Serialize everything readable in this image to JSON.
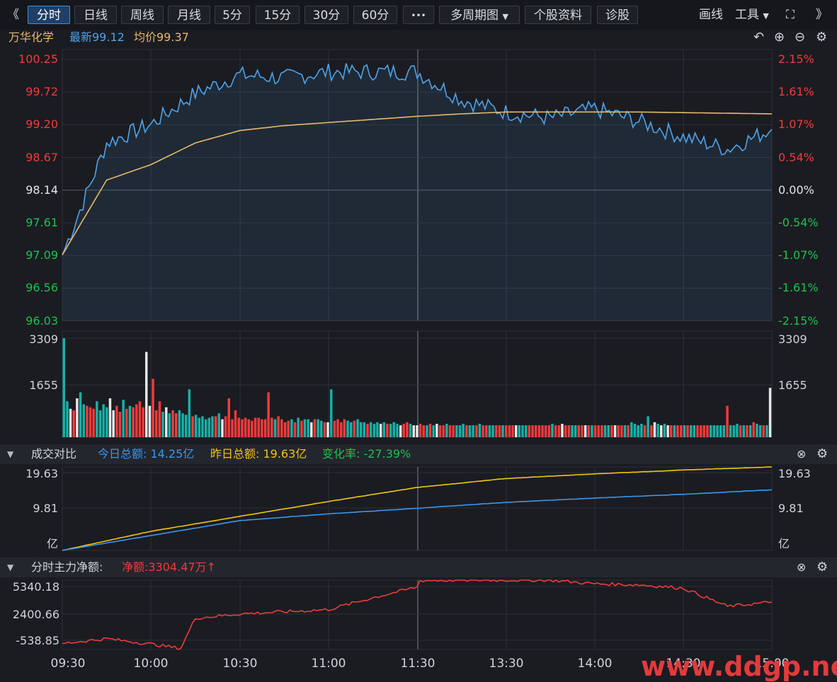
{
  "toolbar": {
    "back_glyph": "《",
    "tabs": [
      "分时",
      "日线",
      "周线",
      "月线",
      "5分",
      "15分",
      "30分",
      "60分"
    ],
    "more": "•••",
    "multi_period": "多周期图",
    "profile": "个股资料",
    "diagnose": "诊股",
    "draw": "画线",
    "tools": "工具",
    "expand_glyph": "⛶",
    "forward_glyph": "》"
  },
  "quote": {
    "name": "万华化学",
    "latest_label": "最新99.12",
    "avg_label": "均价99.37"
  },
  "panels": {
    "turnover": {
      "title": "成交对比",
      "today": "今日总额: 14.25亿",
      "yesterday": "昨日总额: 19.63亿",
      "change": "变化率: -27.39%"
    },
    "mainflow": {
      "title": "分时主力净额:",
      "net": "净额:3304.47万↑"
    }
  },
  "axes": {
    "price_left": [
      "100.25",
      "99.72",
      "99.20",
      "98.67",
      "98.14",
      "97.61",
      "97.09",
      "96.56",
      "96.03"
    ],
    "price_right": [
      "2.15%",
      "1.61%",
      "1.07%",
      "0.54%",
      "0.00%",
      "-0.54%",
      "-1.07%",
      "-1.61%",
      "-2.15%"
    ],
    "volume": [
      "3309",
      "1655"
    ],
    "turnover": [
      "19.63",
      "9.81",
      "亿"
    ],
    "mainflow": [
      "5340.18",
      "2400.66",
      "-538.85"
    ],
    "time": [
      "09:30",
      "10:00",
      "10:30",
      "11:00",
      "11:30",
      "13:30",
      "14:00",
      "14:30",
      "15:00"
    ]
  },
  "colors": {
    "up": "#f23a3a",
    "down": "#17b04a",
    "price_line": "#4fa3ea",
    "avg_line": "#e8b86a",
    "today_line": "#3b97f0",
    "yesterday_line": "#f2c511",
    "flow_line": "#ef3b3b",
    "grid": "#2c3038"
  },
  "watermark": "www.ddgp.net",
  "chart_data": [
    {
      "type": "line",
      "name": "price",
      "x": [
        "09:30",
        "09:45",
        "10:00",
        "10:15",
        "10:30",
        "10:45",
        "11:00",
        "11:15",
        "11:30",
        "13:15",
        "13:30",
        "13:45",
        "14:00",
        "14:15",
        "14:30",
        "14:45",
        "15:00"
      ],
      "series": [
        {
          "values": [
            97.09,
            98.9,
            99.2,
            99.7,
            100.0,
            99.95,
            100.05,
            100.05,
            100.05,
            99.6,
            99.4,
            99.3,
            99.45,
            99.25,
            99.0,
            98.8,
            99.12
          ]
        },
        {
          "values": [
            97.09,
            98.3,
            98.55,
            98.9,
            99.1,
            99.18,
            99.23,
            99.28,
            99.33,
            99.37,
            99.4,
            99.4,
            99.4,
            99.4,
            99.39,
            99.38,
            99.37
          ]
        }
      ],
      "ylim": [
        96.03,
        100.25
      ]
    },
    {
      "type": "bar",
      "name": "volume",
      "ylim": [
        0,
        3309
      ],
      "values": [
        3309,
        1200,
        950,
        900,
        1300,
        1500,
        1100,
        1050,
        1000,
        950,
        1200,
        900,
        1100,
        1000,
        1300,
        900,
        1050,
        850,
        1250,
        950,
        1050,
        1000,
        1100,
        1200,
        1000,
        2850,
        1050,
        1950,
        900,
        1200,
        850,
        1000,
        800,
        900,
        800,
        900,
        800,
        750,
        1600,
        700,
        750,
        650,
        700,
        600,
        650,
        700,
        700,
        800,
        600,
        700,
        1300,
        600,
        900,
        650,
        600,
        650,
        600,
        550,
        650,
        650,
        600,
        600,
        1500,
        650,
        600,
        700,
        600,
        500,
        550,
        600,
        500,
        650,
        550,
        600,
        600,
        500,
        600,
        600,
        550,
        500,
        500,
        1600,
        550,
        600,
        500,
        600,
        550,
        500,
        550,
        600,
        500,
        500,
        450,
        500,
        450,
        500,
        450,
        500,
        450,
        450,
        500,
        450,
        400,
        450,
        500,
        450,
        400,
        400,
        450,
        400,
        400,
        450,
        400,
        450,
        400,
        400,
        450,
        400,
        400,
        400,
        400,
        450,
        400,
        400,
        400,
        400,
        450,
        400,
        400,
        400,
        400,
        400,
        400,
        400,
        400,
        400,
        400,
        400,
        400,
        400,
        400,
        400,
        400,
        400,
        400,
        400,
        400,
        400,
        450,
        400,
        400,
        450,
        400,
        400,
        400,
        400,
        400,
        400,
        400,
        400,
        400,
        400,
        400,
        400,
        400,
        400,
        400,
        400,
        400,
        400,
        400,
        400,
        500,
        450,
        400,
        450,
        400,
        700,
        400,
        500,
        450,
        400,
        450,
        400,
        400,
        400,
        400,
        400,
        400,
        400,
        400,
        400,
        400,
        400,
        400,
        400,
        400,
        400,
        400,
        400,
        400,
        1050,
        400,
        400,
        450,
        400,
        400,
        400,
        400,
        500,
        450,
        400,
        400,
        400,
        1650
      ]
    },
    {
      "type": "line",
      "name": "turnover",
      "x": [
        "09:30",
        "10:00",
        "10:30",
        "11:00",
        "11:30",
        "13:30",
        "14:00",
        "14:30",
        "15:00"
      ],
      "series": [
        {
          "values": [
            0,
            3.5,
            7.0,
            8.6,
            9.9,
            11.3,
            12.3,
            13.2,
            14.25
          ]
        },
        {
          "values": [
            0,
            4.5,
            8.0,
            11.5,
            14.8,
            16.9,
            18.0,
            18.9,
            19.63
          ]
        }
      ],
      "ylim": [
        0,
        19.63
      ]
    },
    {
      "type": "line",
      "name": "mainflow",
      "x": [
        "09:30",
        "09:45",
        "10:00",
        "10:10",
        "10:15",
        "10:30",
        "10:45",
        "11:00",
        "11:15",
        "11:30",
        "11:45",
        "13:15",
        "13:30",
        "13:45",
        "14:00",
        "14:15",
        "14:30",
        "14:45",
        "15:00"
      ],
      "values": [
        -538.85,
        -100,
        -600,
        -1000,
        1800,
        2200,
        2400,
        2600,
        3700,
        4700,
        5100,
        5340.18,
        5340.18,
        5340.18,
        5000,
        4900,
        4600,
        2900,
        3304.47
      ],
      "ylim": [
        -1100,
        5340.18
      ]
    }
  ]
}
